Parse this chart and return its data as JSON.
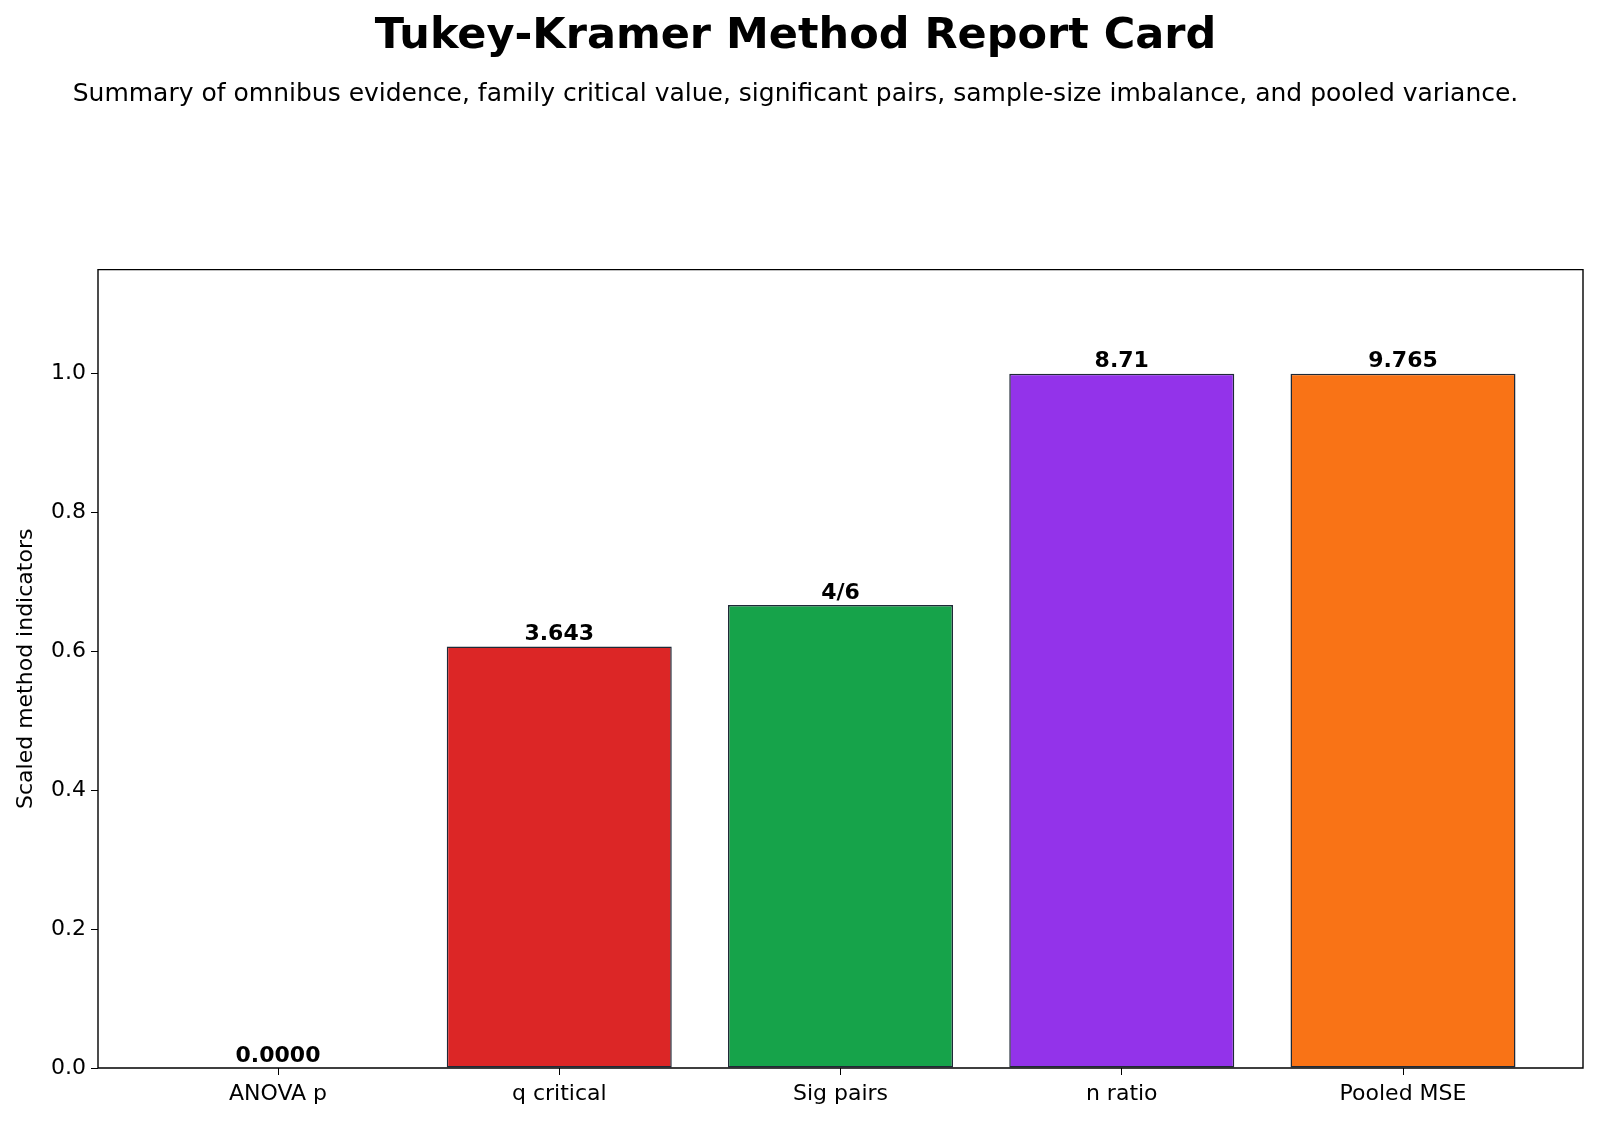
{
  "chart_data": {
    "type": "bar",
    "title": "Tukey-Kramer Method Report Card",
    "subtitle": "Summary of omnibus evidence, family critical value, significant pairs, sample-size imbalance, and pooled variance.",
    "ylabel": "Scaled method indicators",
    "categories": [
      "ANOVA p",
      "q critical",
      "Sig pairs",
      "n ratio",
      "Pooled MSE"
    ],
    "values": [
      0,
      0.607,
      0.667,
      1,
      1
    ],
    "colors": [
      "#2563eb",
      "#dc2626",
      "#16a34a",
      "#9333ea",
      "#f97316"
    ],
    "annotations": [
      {
        "text": "0.0000",
        "x": "ANOVA p",
        "y": 0
      },
      {
        "text": "3.643",
        "x": "q critical",
        "y": 0.607
      },
      {
        "text": "4/6",
        "x": "Sig pairs",
        "y": 0.667
      },
      {
        "text": "8.71",
        "x": "n ratio",
        "y": 1
      },
      {
        "text": "9.765",
        "x": "Pooled MSE",
        "y": 1
      }
    ],
    "ylim": [
      0,
      1.15
    ],
    "yticks": [
      {
        "value": 0,
        "label": "0.0"
      },
      0.2,
      0.4,
      0.6,
      0.8,
      {
        "value": 1,
        "label": "1.0"
      }
    ],
    "grid": false,
    "legend": false
  }
}
